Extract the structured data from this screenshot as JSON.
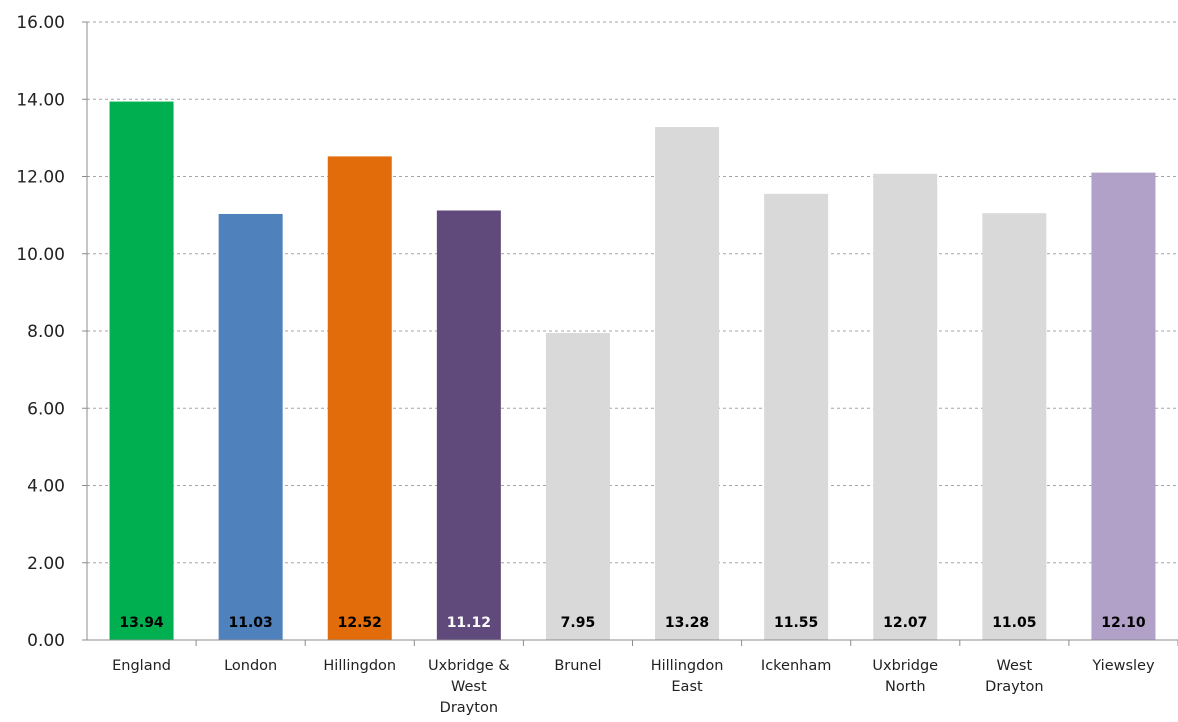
{
  "chart_data": {
    "type": "bar",
    "title": "",
    "xlabel": "",
    "ylabel": "",
    "ylim": [
      0,
      16
    ],
    "yticks": [
      "0.00",
      "2.00",
      "4.00",
      "6.00",
      "8.00",
      "10.00",
      "12.00",
      "14.00",
      "16.00"
    ],
    "grid": true,
    "legend": "none",
    "categories": [
      [
        "England"
      ],
      [
        "London"
      ],
      [
        "Hillingdon"
      ],
      [
        "Uxbridge &",
        "West",
        "Drayton"
      ],
      [
        "Brunel"
      ],
      [
        "Hillingdon",
        "East"
      ],
      [
        "Ickenham"
      ],
      [
        "Uxbridge",
        "North"
      ],
      [
        "West",
        "Drayton"
      ],
      [
        "Yiewsley"
      ]
    ],
    "values": [
      13.94,
      11.03,
      12.52,
      11.12,
      7.95,
      13.28,
      11.55,
      12.07,
      11.05,
      12.1
    ],
    "value_labels": [
      "13.94",
      "11.03",
      "12.52",
      "11.12",
      "7.95",
      "13.28",
      "11.55",
      "12.07",
      "11.05",
      "12.10"
    ],
    "colors": [
      "#00b050",
      "#4f81bd",
      "#e36c0a",
      "#604a7b",
      "#d9d9d9",
      "#d9d9d9",
      "#d9d9d9",
      "#d9d9d9",
      "#d9d9d9",
      "#b1a0c7"
    ],
    "label_colors": [
      "#000000",
      "#000000",
      "#000000",
      "#ffffff",
      "#000000",
      "#000000",
      "#000000",
      "#000000",
      "#000000",
      "#000000"
    ]
  }
}
